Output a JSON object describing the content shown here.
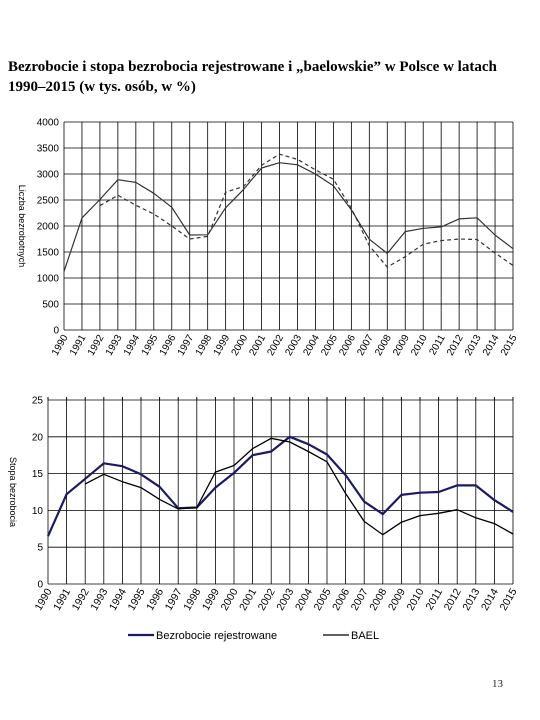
{
  "page": {
    "title": "Bezrobocie i stopa bezrobocia rejestrowane i „baelowskie” w Polsce w latach 1990–2015 (w tys. osób, w %)",
    "page_number": "13"
  },
  "chart_data": [
    {
      "type": "line",
      "title": "",
      "xlabel": "",
      "ylabel": "Liczba bezrobotnych",
      "ylim": [
        0,
        4000
      ],
      "yticks": [
        0,
        500,
        1000,
        1500,
        2000,
        2500,
        3000,
        3500,
        4000
      ],
      "grid": true,
      "legend": "none",
      "x": [
        "1990",
        "1991",
        "1992",
        "1993",
        "1994",
        "1995",
        "1996",
        "1997",
        "1998",
        "1999",
        "2000",
        "2001",
        "2002",
        "2003",
        "2004",
        "2005",
        "2006",
        "2007",
        "2008",
        "2009",
        "2010",
        "2011",
        "2012",
        "2013",
        "2014",
        "2015"
      ],
      "series": [
        {
          "color": "#333333",
          "dash": "solid",
          "values": [
            1126,
            2156,
            2509,
            2890,
            2838,
            2629,
            2360,
            1826,
            1831,
            2350,
            2703,
            3116,
            3217,
            3176,
            3000,
            2773,
            2309,
            1746,
            1474,
            1892,
            1955,
            1983,
            2137,
            2158,
            1826,
            1563
          ]
        },
        {
          "color": "#333333",
          "dash": "dashed",
          "values": [
            null,
            null,
            2390,
            2590,
            2400,
            2230,
            2000,
            1750,
            1800,
            2650,
            2760,
            3170,
            3380,
            3280,
            3080,
            2900,
            2340,
            1620,
            1210,
            1410,
            1650,
            1720,
            1750,
            1740,
            1480,
            1240
          ]
        }
      ]
    },
    {
      "type": "line",
      "title": "",
      "xlabel": "",
      "ylabel": "Stopa bezrobocia",
      "ylim": [
        0,
        25
      ],
      "yticks": [
        0,
        5,
        10,
        15,
        20,
        25
      ],
      "grid": true,
      "legend": "bottom",
      "x": [
        "1990",
        "1991",
        "1992",
        "1993",
        "1994",
        "1995",
        "1996",
        "1997",
        "1998",
        "1999",
        "2000",
        "2001",
        "2002",
        "2003",
        "2004",
        "2005",
        "2006",
        "2007",
        "2008",
        "2009",
        "2010",
        "2011",
        "2012",
        "2013",
        "2014",
        "2015"
      ],
      "series": [
        {
          "name": "Bezrobocie rejestrowane",
          "color": "#1a1a66",
          "width": 2.2,
          "values": [
            6.5,
            12.2,
            14.3,
            16.4,
            16.0,
            14.9,
            13.2,
            10.3,
            10.4,
            13.1,
            15.1,
            17.5,
            18.0,
            20.0,
            19.0,
            17.6,
            14.8,
            11.2,
            9.5,
            12.1,
            12.4,
            12.5,
            13.4,
            13.4,
            11.4,
            9.8
          ]
        },
        {
          "name": "BAEL",
          "color": "#000000",
          "width": 1.3,
          "values": [
            null,
            null,
            13.6,
            14.9,
            13.9,
            13.1,
            11.5,
            10.2,
            10.4,
            15.2,
            16.1,
            18.4,
            19.8,
            19.3,
            18.0,
            16.6,
            12.3,
            8.5,
            6.7,
            8.4,
            9.3,
            9.6,
            10.1,
            9.0,
            8.2,
            6.8
          ]
        }
      ]
    }
  ]
}
